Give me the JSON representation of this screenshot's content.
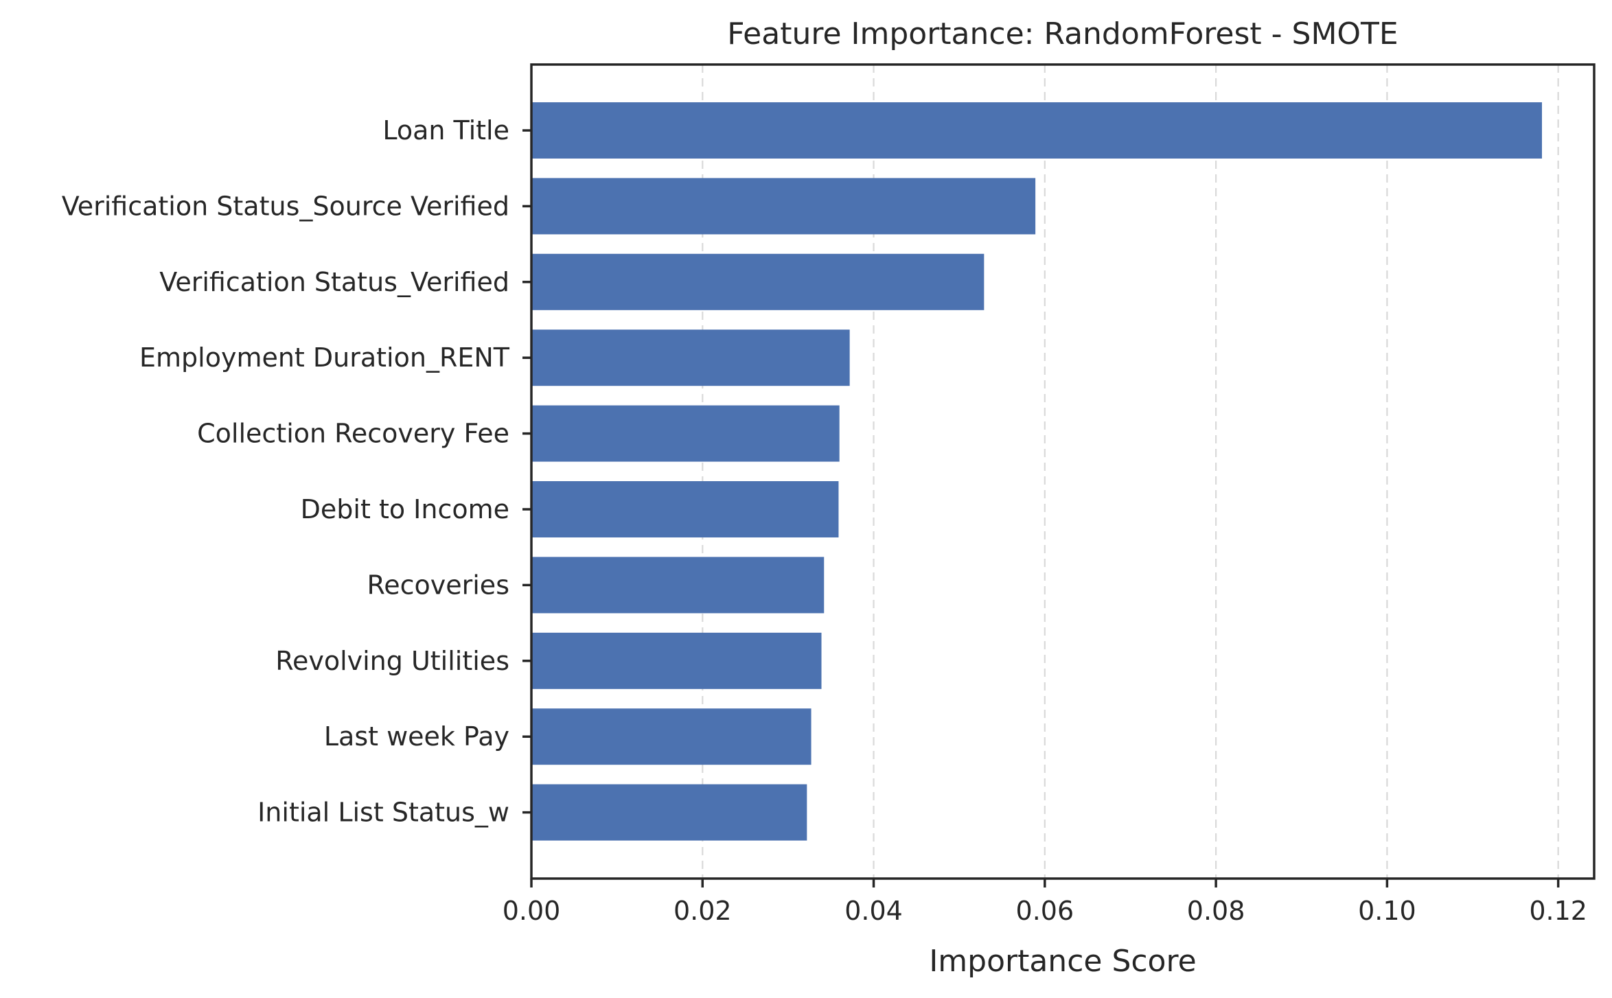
{
  "chart_data": {
    "type": "bar",
    "orientation": "horizontal",
    "title": "Feature Importance: RandomForest - SMOTE",
    "xlabel": "Importance Score",
    "ylabel": "",
    "xlim": [
      0,
      0.1242
    ],
    "xticks": [
      0.0,
      0.02,
      0.04,
      0.06,
      0.08,
      0.1,
      0.12
    ],
    "xtick_labels": [
      "0.00",
      "0.02",
      "0.04",
      "0.06",
      "0.08",
      "0.10",
      "0.12"
    ],
    "grid": "x-dashed",
    "bar_color": "#4c72b0",
    "categories": [
      "Loan Title",
      "Verification Status_Source Verified",
      "Verification Status_Verified",
      "Employment Duration_RENT",
      "Collection Recovery Fee",
      "Debit to Income",
      "Recoveries",
      "Revolving Utilities",
      "Last week Pay",
      "Initial List Status_w"
    ],
    "values": [
      0.1181,
      0.0589,
      0.0529,
      0.0372,
      0.036,
      0.0359,
      0.0342,
      0.0339,
      0.0327,
      0.0322
    ]
  }
}
